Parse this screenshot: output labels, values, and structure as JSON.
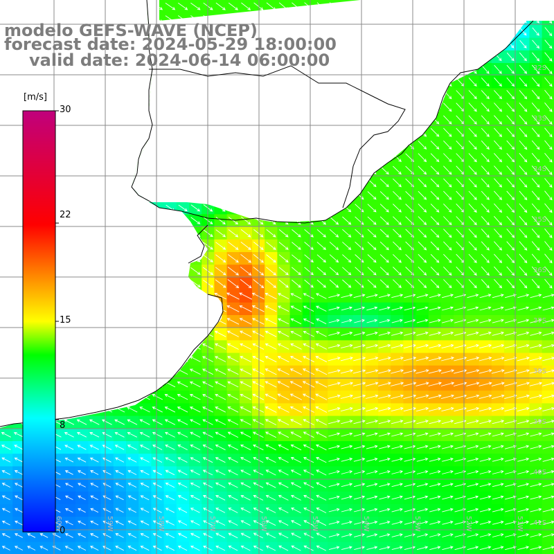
{
  "header": {
    "line1": "modelo GEFS-WAVE (NCEP)",
    "line2": "forecast date: 2024-05-29 18:00:00",
    "line3": "valid date: 2024-06-14 06:00:00"
  },
  "colorbar": {
    "unit": "[m/s]",
    "ticks": [
      "0",
      "8",
      "15",
      "22",
      "30"
    ],
    "tick_values": [
      0,
      8,
      15,
      22,
      30
    ],
    "colors": [
      "#0000ff",
      "#00ffff",
      "#00ff00",
      "#ffff00",
      "#ff0000",
      "#c0007c"
    ]
  },
  "map": {
    "lat_labels": [
      "32S",
      "33S",
      "34S",
      "35S",
      "36S",
      "37S",
      "38S",
      "39S",
      "40S",
      "41S"
    ],
    "lon_labels": [
      "60W",
      "59W",
      "58W",
      "57W",
      "56W",
      "55W",
      "54W",
      "53W",
      "52W",
      "51W"
    ],
    "land_color": "#ffffff",
    "grid_color": "#888888"
  }
}
